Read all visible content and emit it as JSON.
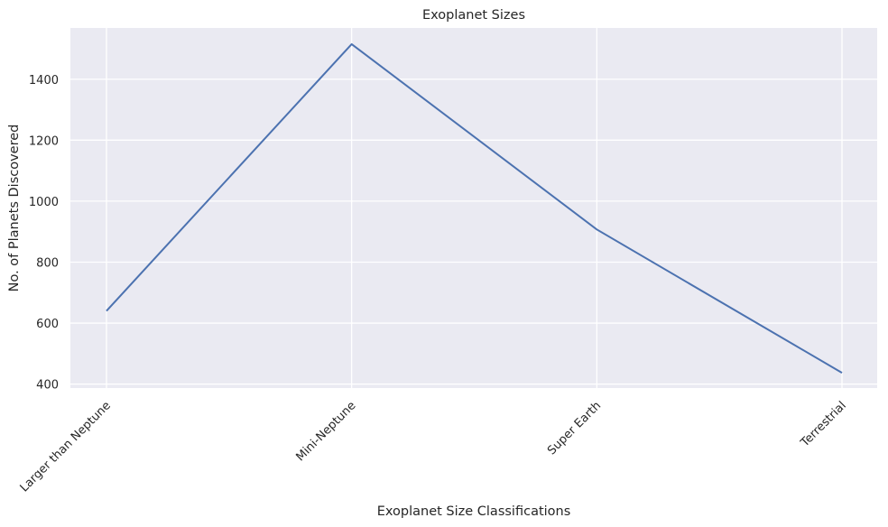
{
  "chart_data": {
    "type": "line",
    "title": "Exoplanet Sizes",
    "xlabel": "Exoplanet Size Classifications",
    "ylabel": "No. of Planets Discovered",
    "categories": [
      "Larger than Neptune",
      "Mini-Neptune",
      "Super Earth",
      "Terrestrial"
    ],
    "series": [
      {
        "values": [
          640,
          1515,
          907,
          437
        ],
        "color": "#4c72b0"
      }
    ],
    "ylim": [
      387,
      1568
    ],
    "yticks": [
      400,
      600,
      800,
      1000,
      1200,
      1400
    ],
    "grid": true,
    "background": "#eaeaf2",
    "grid_color": "#ffffff"
  }
}
